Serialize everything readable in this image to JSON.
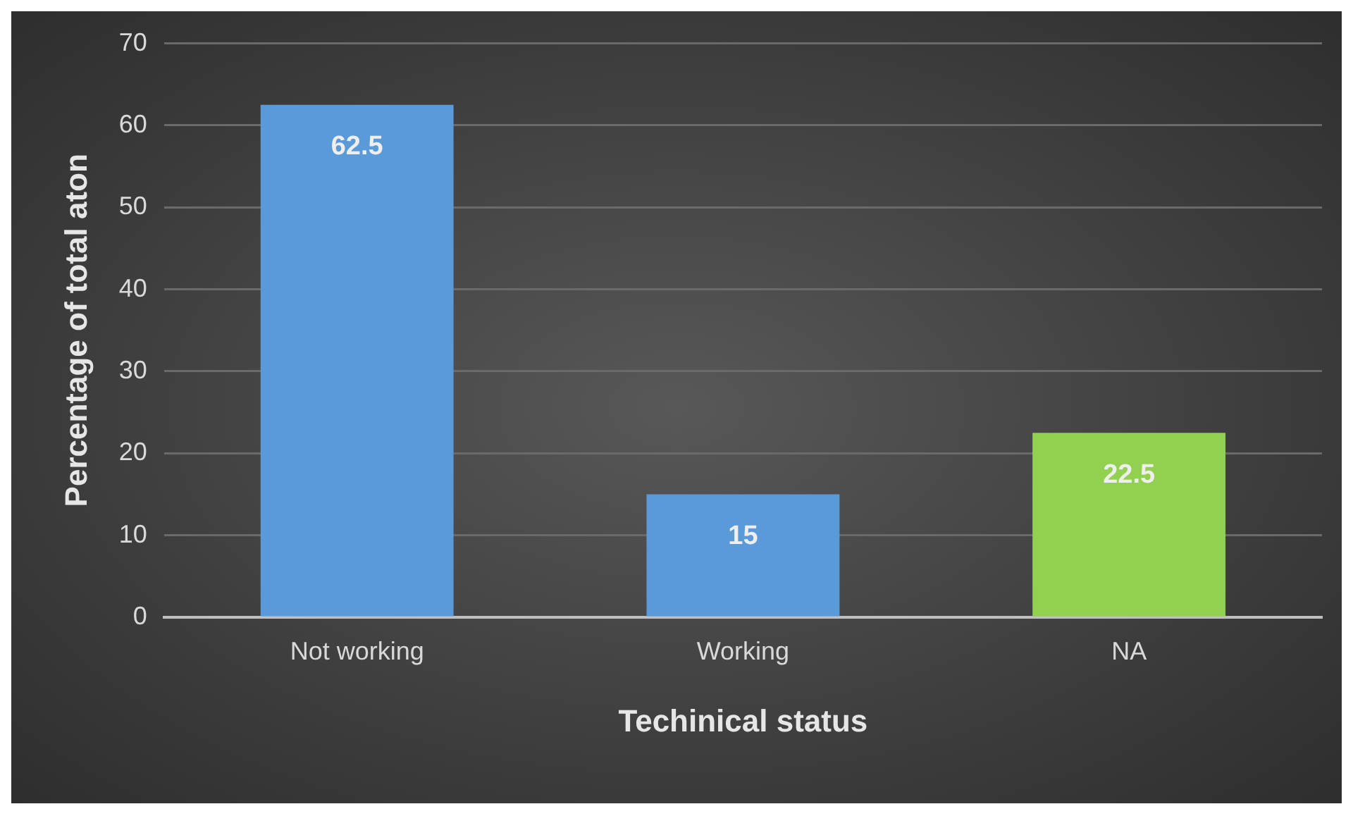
{
  "chart_data": {
    "type": "bar",
    "xlabel": "Techinical status",
    "ylabel": "Percentage of total aton",
    "categories": [
      "Not working",
      "Working",
      "NA"
    ],
    "values": [
      62.5,
      15,
      22.5
    ],
    "colors": [
      "#5a9ad8",
      "#5a9ad8",
      "#92d050"
    ],
    "ylim": [
      0,
      70
    ],
    "yticks": [
      0,
      10,
      20,
      30,
      40,
      50,
      60,
      70
    ],
    "grid": "y",
    "data_labels": true,
    "legend": false
  }
}
